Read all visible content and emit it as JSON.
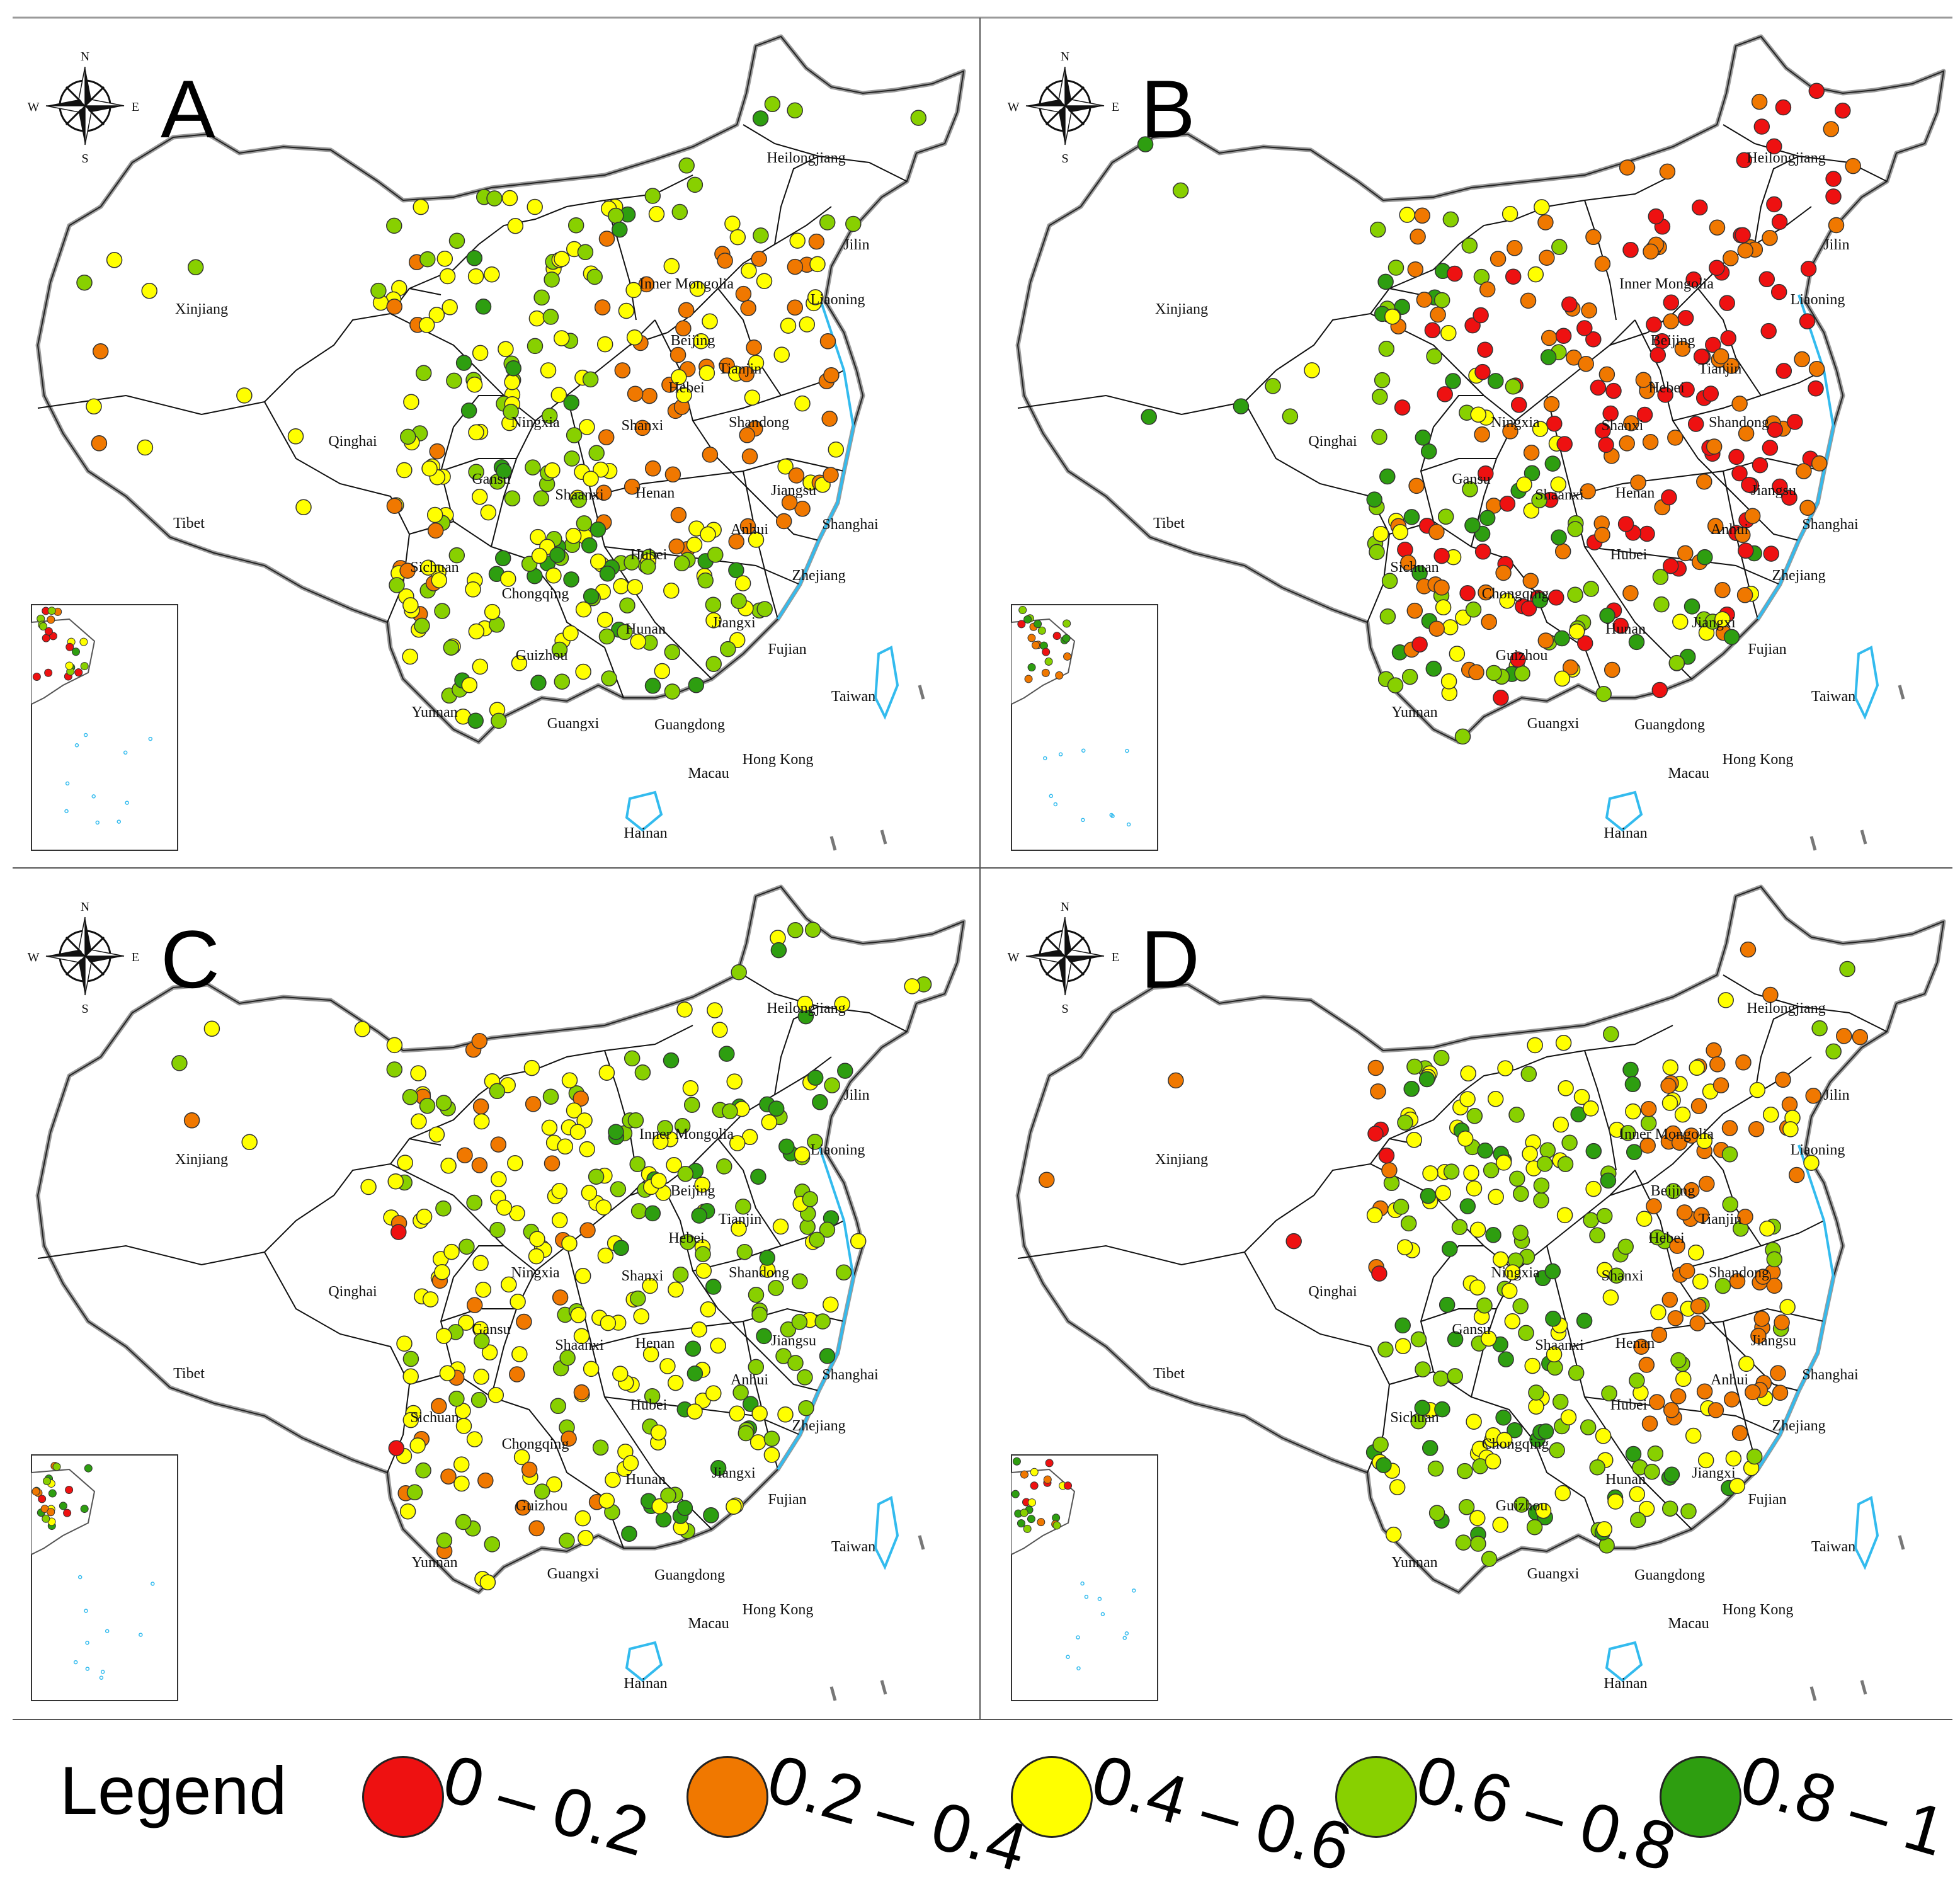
{
  "figure": {
    "panels": [
      {
        "letter": "A",
        "id": "A"
      },
      {
        "letter": "B",
        "id": "B"
      },
      {
        "letter": "C",
        "id": "C"
      },
      {
        "letter": "D",
        "id": "D"
      }
    ],
    "compass": {
      "n": "N",
      "s": "S",
      "e": "E",
      "w": "W"
    },
    "region_labels": [
      "Heilongjiang",
      "Jilin",
      "Liaoning",
      "Inner Mongolia",
      "Beijing",
      "Tianjin",
      "Hebei",
      "Shandong",
      "Shanxi",
      "Ningxia",
      "Qinghai",
      "Xinjiang",
      "Tibet",
      "Gansu",
      "Shaanxi",
      "Henan",
      "Jiangsu",
      "Anhui",
      "Shanghai",
      "Sichuan",
      "Hubei",
      "Chongqing",
      "Zhejiang",
      "Hunan",
      "Jiangxi",
      "Fujian",
      "Guizhou",
      "Taiwan",
      "Yunnan",
      "Guangxi",
      "Guangdong",
      "Hong Kong",
      "Macau",
      "Hainan"
    ]
  },
  "legend": {
    "title": "Legend",
    "classes": [
      {
        "label": "0 – 0.2",
        "color": "#ee1111"
      },
      {
        "label": "0.2 – 0.4",
        "color": "#f07800"
      },
      {
        "label": "0.4 – 0.6",
        "color": "#ffff00"
      },
      {
        "label": "0.6 – 0.8",
        "color": "#88d000"
      },
      {
        "label": "0.8 – 1",
        "color": "#2e9e10"
      }
    ]
  }
}
